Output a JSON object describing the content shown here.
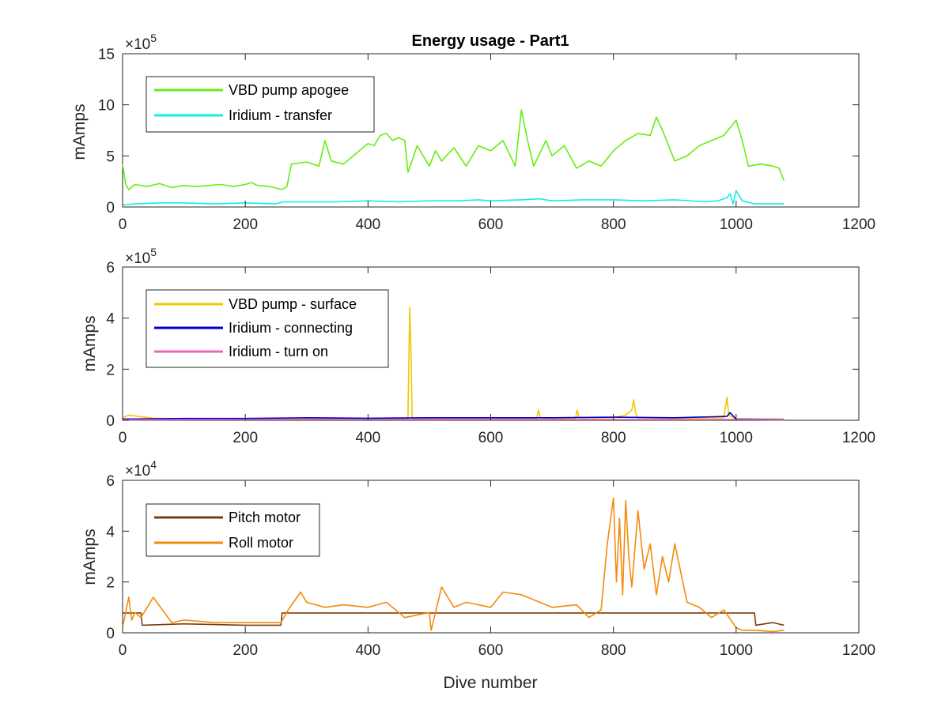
{
  "chart_data": [
    {
      "type": "line",
      "title": "Energy usage - Part1",
      "xlabel": "",
      "ylabel": "mAmps",
      "xlim": [
        0,
        1200
      ],
      "ylim": [
        0,
        15
      ],
      "x_ticks": [
        "0",
        "200",
        "400",
        "600",
        "800",
        "1000",
        "1200"
      ],
      "y_ticks": [
        "0",
        "5",
        "10",
        "15"
      ],
      "exponent_base": "×10",
      "exponent_power": "5",
      "legend_position": "top-left",
      "series": [
        {
          "name": "VBD pump apogee",
          "color": "#66ee11",
          "x": [
            0,
            5,
            10,
            20,
            40,
            60,
            80,
            100,
            120,
            140,
            160,
            180,
            200,
            210,
            220,
            240,
            260,
            268,
            275,
            300,
            320,
            330,
            340,
            360,
            380,
            400,
            410,
            420,
            430,
            440,
            450,
            460,
            465,
            470,
            480,
            500,
            510,
            520,
            540,
            560,
            580,
            600,
            620,
            640,
            650,
            660,
            670,
            690,
            700,
            720,
            740,
            760,
            780,
            800,
            820,
            840,
            860,
            870,
            880,
            900,
            920,
            940,
            960,
            980,
            1000,
            1010,
            1020,
            1040,
            1060,
            1070,
            1078
          ],
          "y": [
            4.2,
            2.2,
            1.7,
            2.2,
            2.0,
            2.3,
            1.9,
            2.1,
            2.0,
            2.1,
            2.2,
            2.0,
            2.2,
            2.4,
            2.1,
            2.0,
            1.7,
            2.0,
            4.2,
            4.4,
            4.0,
            6.5,
            4.5,
            4.2,
            5.2,
            6.2,
            6.0,
            7.0,
            7.2,
            6.5,
            6.8,
            6.5,
            3.4,
            4.2,
            6.0,
            4.0,
            5.5,
            4.5,
            5.8,
            4.0,
            6.0,
            5.5,
            6.5,
            4.0,
            9.5,
            6.5,
            4.0,
            6.5,
            5.0,
            6.0,
            3.8,
            4.5,
            4.0,
            5.5,
            6.5,
            7.2,
            7.0,
            8.8,
            7.5,
            4.5,
            5.0,
            6.0,
            6.5,
            7.0,
            8.5,
            6.5,
            4.0,
            4.2,
            4.0,
            3.8,
            2.6
          ]
        },
        {
          "name": "Iridium - transfer",
          "color": "#11eeee",
          "x": [
            0,
            20,
            60,
            100,
            150,
            200,
            250,
            262,
            270,
            300,
            350,
            400,
            450,
            500,
            550,
            580,
            600,
            650,
            680,
            700,
            750,
            800,
            850,
            900,
            950,
            970,
            985,
            990,
            995,
            1000,
            1010,
            1030,
            1060,
            1078
          ],
          "y": [
            0.2,
            0.3,
            0.4,
            0.4,
            0.3,
            0.4,
            0.3,
            0.5,
            0.5,
            0.5,
            0.5,
            0.6,
            0.5,
            0.6,
            0.6,
            0.7,
            0.6,
            0.7,
            0.8,
            0.6,
            0.7,
            0.7,
            0.6,
            0.7,
            0.5,
            0.6,
            0.9,
            1.3,
            0.3,
            1.6,
            0.6,
            0.3,
            0.3,
            0.3
          ]
        }
      ]
    },
    {
      "type": "line",
      "title": "",
      "xlabel": "",
      "ylabel": "mAmps",
      "xlim": [
        0,
        1200
      ],
      "ylim": [
        0,
        6
      ],
      "x_ticks": [
        "0",
        "200",
        "400",
        "600",
        "800",
        "1000",
        "1200"
      ],
      "y_ticks": [
        "0",
        "2",
        "4",
        "6"
      ],
      "exponent_base": "×10",
      "exponent_power": "5",
      "legend_position": "top-left",
      "series": [
        {
          "name": "VBD pump - surface",
          "color": "#eec800",
          "x": [
            0,
            10,
            50,
            100,
            200,
            300,
            400,
            460,
            465,
            468,
            470,
            472,
            475,
            500,
            600,
            675,
            678,
            681,
            700,
            738,
            741,
            744,
            800,
            820,
            830,
            833,
            836,
            840,
            900,
            980,
            985,
            988,
            1000,
            1078
          ],
          "y": [
            0.1,
            0.2,
            0.08,
            0.06,
            0.06,
            0.07,
            0.07,
            0.07,
            0.08,
            4.4,
            2.8,
            0.1,
            0.08,
            0.07,
            0.08,
            0.08,
            0.4,
            0.1,
            0.08,
            0.08,
            0.4,
            0.1,
            0.1,
            0.2,
            0.4,
            0.8,
            0.3,
            0.1,
            0.08,
            0.1,
            0.9,
            0.2,
            0.05,
            0.05
          ]
        },
        {
          "name": "Iridium - connecting",
          "color": "#0000cc",
          "x": [
            0,
            100,
            200,
            300,
            400,
            500,
            600,
            700,
            800,
            900,
            985,
            990,
            1000,
            1078
          ],
          "y": [
            0.05,
            0.07,
            0.07,
            0.1,
            0.08,
            0.1,
            0.1,
            0.1,
            0.12,
            0.1,
            0.15,
            0.3,
            0.05,
            0.03
          ]
        },
        {
          "name": "Iridium - turn on",
          "color": "#ee66bb",
          "x": [
            0,
            200,
            400,
            600,
            800,
            1000,
            1078
          ],
          "y": [
            0.02,
            0.03,
            0.03,
            0.03,
            0.03,
            0.03,
            0.02
          ]
        }
      ]
    },
    {
      "type": "line",
      "title": "",
      "xlabel": "Dive number",
      "ylabel": "mAmps",
      "xlim": [
        0,
        1200
      ],
      "ylim": [
        0,
        6
      ],
      "x_ticks": [
        "0",
        "200",
        "400",
        "600",
        "800",
        "1000",
        "1200"
      ],
      "y_ticks": [
        "0",
        "2",
        "4",
        "6"
      ],
      "exponent_base": "×10",
      "exponent_power": "4",
      "legend_position": "top-left",
      "series": [
        {
          "name": "Pitch motor",
          "color": "#7a3c0a",
          "x": [
            0,
            30,
            32,
            100,
            200,
            258,
            260,
            300,
            400,
            500,
            600,
            700,
            800,
            900,
            1000,
            1030,
            1032,
            1060,
            1078
          ],
          "y": [
            0.78,
            0.78,
            0.3,
            0.35,
            0.3,
            0.3,
            0.78,
            0.78,
            0.78,
            0.78,
            0.78,
            0.78,
            0.78,
            0.78,
            0.78,
            0.78,
            0.3,
            0.4,
            0.3
          ]
        },
        {
          "name": "Roll motor",
          "color": "#f28b0c",
          "x": [
            0,
            10,
            15,
            20,
            30,
            50,
            80,
            100,
            150,
            200,
            258,
            270,
            290,
            300,
            330,
            360,
            400,
            430,
            460,
            500,
            503,
            520,
            540,
            560,
            600,
            620,
            650,
            680,
            700,
            740,
            760,
            780,
            790,
            800,
            805,
            810,
            815,
            820,
            825,
            830,
            840,
            850,
            860,
            870,
            880,
            890,
            900,
            920,
            940,
            960,
            980,
            1000,
            1010,
            1030,
            1060,
            1078
          ],
          "y": [
            0.2,
            1.4,
            0.5,
            0.8,
            0.6,
            1.4,
            0.4,
            0.5,
            0.4,
            0.4,
            0.4,
            0.9,
            1.6,
            1.2,
            1.0,
            1.1,
            1.0,
            1.2,
            0.6,
            0.8,
            0.1,
            1.8,
            1.0,
            1.2,
            1.0,
            1.6,
            1.5,
            1.2,
            1.0,
            1.1,
            0.6,
            0.9,
            3.5,
            5.3,
            2.0,
            4.5,
            1.5,
            5.2,
            3.0,
            1.8,
            4.8,
            2.5,
            3.5,
            1.5,
            3.0,
            2.0,
            3.5,
            1.2,
            1.0,
            0.6,
            0.9,
            0.2,
            0.1,
            0.1,
            0.05,
            0.1
          ]
        }
      ]
    }
  ]
}
